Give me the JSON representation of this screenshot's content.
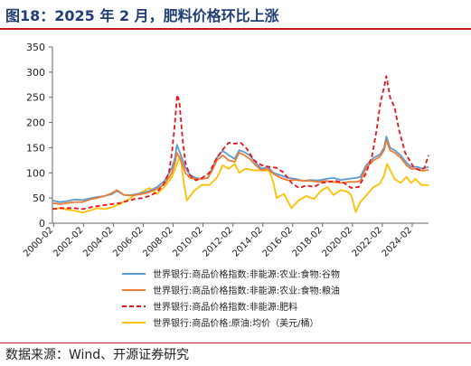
{
  "header": {
    "title": "图18：2025 年 2 月，肥料价格环比上涨"
  },
  "footer": {
    "source": "数据来源：Wind、开源证券研究"
  },
  "colors": {
    "title": "#1f3e74",
    "rule": "#c6161c"
  },
  "chart_data": {
    "type": "line",
    "title": "",
    "xlabel": "",
    "ylabel": "",
    "ylim": [
      0,
      350
    ],
    "yticks": [
      0,
      50,
      100,
      150,
      200,
      250,
      300,
      350
    ],
    "xlim": [
      2000.0,
      2025.17
    ],
    "xtick_labels": [
      "2000-02",
      "2002-02",
      "2004-02",
      "2006-02",
      "2008-02",
      "2010-02",
      "2012-02",
      "2014-02",
      "2016-02",
      "2018-02",
      "2020-02",
      "2022-02",
      "2024-02"
    ],
    "xtick_values": [
      2000.08,
      2002.08,
      2004.08,
      2006.08,
      2008.08,
      2010.08,
      2012.08,
      2014.08,
      2016.08,
      2018.08,
      2020.08,
      2022.08,
      2024.08
    ],
    "grid": false,
    "legend_position": "bottom",
    "series": [
      {
        "name": "世界银行:商品价格指数:非能源:农业:食物:谷物",
        "color": "#5b9bd5",
        "style": "solid",
        "points": [
          [
            2000.0,
            45
          ],
          [
            2000.5,
            42
          ],
          [
            2001.0,
            44
          ],
          [
            2001.5,
            47
          ],
          [
            2002.0,
            46
          ],
          [
            2002.6,
            50
          ],
          [
            2003.0,
            52
          ],
          [
            2003.5,
            54
          ],
          [
            2004.0,
            58
          ],
          [
            2004.3,
            64
          ],
          [
            2004.8,
            56
          ],
          [
            2005.3,
            56
          ],
          [
            2006.0,
            60
          ],
          [
            2006.5,
            64
          ],
          [
            2007.0,
            72
          ],
          [
            2007.5,
            84
          ],
          [
            2008.0,
            110
          ],
          [
            2008.2,
            130
          ],
          [
            2008.33,
            156
          ],
          [
            2008.6,
            135
          ],
          [
            2008.9,
            110
          ],
          [
            2009.2,
            96
          ],
          [
            2009.6,
            90
          ],
          [
            2010.0,
            88
          ],
          [
            2010.4,
            90
          ],
          [
            2010.7,
            110
          ],
          [
            2011.0,
            130
          ],
          [
            2011.4,
            144
          ],
          [
            2011.8,
            135
          ],
          [
            2012.2,
            128
          ],
          [
            2012.5,
            145
          ],
          [
            2012.8,
            142
          ],
          [
            2013.2,
            135
          ],
          [
            2013.6,
            120
          ],
          [
            2014.0,
            108
          ],
          [
            2014.4,
            112
          ],
          [
            2014.8,
            100
          ],
          [
            2015.3,
            95
          ],
          [
            2015.8,
            90
          ],
          [
            2016.3,
            88
          ],
          [
            2016.8,
            84
          ],
          [
            2017.3,
            86
          ],
          [
            2017.8,
            85
          ],
          [
            2018.3,
            88
          ],
          [
            2018.8,
            90
          ],
          [
            2019.3,
            86
          ],
          [
            2019.8,
            88
          ],
          [
            2020.3,
            90
          ],
          [
            2020.6,
            92
          ],
          [
            2021.0,
            115
          ],
          [
            2021.5,
            130
          ],
          [
            2021.9,
            136
          ],
          [
            2022.2,
            150
          ],
          [
            2022.35,
            172
          ],
          [
            2022.6,
            150
          ],
          [
            2022.9,
            145
          ],
          [
            2023.3,
            135
          ],
          [
            2023.7,
            120
          ],
          [
            2024.0,
            112
          ],
          [
            2024.4,
            112
          ],
          [
            2024.8,
            108
          ],
          [
            2025.17,
            112
          ]
        ]
      },
      {
        "name": "世界银行:商品价格指数:非能源:农业:食物:粮油",
        "color": "#ed7d31",
        "style": "solid",
        "points": [
          [
            2000.0,
            40
          ],
          [
            2000.5,
            38
          ],
          [
            2001.0,
            40
          ],
          [
            2001.5,
            42
          ],
          [
            2002.0,
            42
          ],
          [
            2002.6,
            48
          ],
          [
            2003.0,
            50
          ],
          [
            2003.5,
            54
          ],
          [
            2004.0,
            60
          ],
          [
            2004.3,
            66
          ],
          [
            2004.8,
            56
          ],
          [
            2005.3,
            55
          ],
          [
            2006.0,
            58
          ],
          [
            2006.5,
            62
          ],
          [
            2007.0,
            68
          ],
          [
            2007.5,
            78
          ],
          [
            2008.0,
            100
          ],
          [
            2008.2,
            120
          ],
          [
            2008.33,
            140
          ],
          [
            2008.6,
            125
          ],
          [
            2008.9,
            100
          ],
          [
            2009.2,
            90
          ],
          [
            2009.6,
            88
          ],
          [
            2010.0,
            88
          ],
          [
            2010.4,
            90
          ],
          [
            2010.7,
            105
          ],
          [
            2011.0,
            125
          ],
          [
            2011.4,
            135
          ],
          [
            2011.8,
            125
          ],
          [
            2012.2,
            122
          ],
          [
            2012.5,
            140
          ],
          [
            2012.8,
            136
          ],
          [
            2013.2,
            128
          ],
          [
            2013.6,
            115
          ],
          [
            2014.0,
            105
          ],
          [
            2014.4,
            108
          ],
          [
            2014.8,
            98
          ],
          [
            2015.3,
            90
          ],
          [
            2015.8,
            85
          ],
          [
            2016.3,
            86
          ],
          [
            2016.8,
            84
          ],
          [
            2017.3,
            84
          ],
          [
            2017.8,
            82
          ],
          [
            2018.3,
            84
          ],
          [
            2018.8,
            82
          ],
          [
            2019.3,
            80
          ],
          [
            2019.8,
            82
          ],
          [
            2020.3,
            82
          ],
          [
            2020.6,
            84
          ],
          [
            2021.0,
            110
          ],
          [
            2021.5,
            125
          ],
          [
            2021.9,
            132
          ],
          [
            2022.2,
            145
          ],
          [
            2022.35,
            165
          ],
          [
            2022.6,
            145
          ],
          [
            2022.9,
            140
          ],
          [
            2023.3,
            130
          ],
          [
            2023.7,
            115
          ],
          [
            2024.0,
            108
          ],
          [
            2024.4,
            108
          ],
          [
            2024.8,
            104
          ],
          [
            2025.17,
            106
          ]
        ]
      },
      {
        "name": "世界银行:商品价格指数:非能源:肥料",
        "color": "#e8141c",
        "style": "dashed",
        "points": [
          [
            2000.0,
            28
          ],
          [
            2000.5,
            30
          ],
          [
            2001.0,
            30
          ],
          [
            2001.5,
            30
          ],
          [
            2002.0,
            28
          ],
          [
            2002.6,
            32
          ],
          [
            2003.0,
            34
          ],
          [
            2003.5,
            36
          ],
          [
            2004.0,
            38
          ],
          [
            2004.5,
            40
          ],
          [
            2005.0,
            44
          ],
          [
            2005.5,
            48
          ],
          [
            2006.0,
            50
          ],
          [
            2006.5,
            54
          ],
          [
            2007.0,
            62
          ],
          [
            2007.4,
            75
          ],
          [
            2007.8,
            100
          ],
          [
            2008.0,
            140
          ],
          [
            2008.2,
            200
          ],
          [
            2008.35,
            255
          ],
          [
            2008.5,
            240
          ],
          [
            2008.7,
            170
          ],
          [
            2008.9,
            120
          ],
          [
            2009.2,
            95
          ],
          [
            2009.6,
            85
          ],
          [
            2010.0,
            90
          ],
          [
            2010.5,
            100
          ],
          [
            2011.0,
            130
          ],
          [
            2011.5,
            150
          ],
          [
            2011.8,
            160
          ],
          [
            2012.2,
            158
          ],
          [
            2012.6,
            160
          ],
          [
            2013.0,
            148
          ],
          [
            2013.5,
            125
          ],
          [
            2014.0,
            115
          ],
          [
            2014.5,
            112
          ],
          [
            2015.0,
            110
          ],
          [
            2015.5,
            100
          ],
          [
            2016.0,
            80
          ],
          [
            2016.5,
            70
          ],
          [
            2017.0,
            75
          ],
          [
            2017.5,
            72
          ],
          [
            2018.0,
            80
          ],
          [
            2018.5,
            82
          ],
          [
            2019.0,
            84
          ],
          [
            2019.5,
            80
          ],
          [
            2020.0,
            70
          ],
          [
            2020.5,
            72
          ],
          [
            2021.0,
            100
          ],
          [
            2021.4,
            135
          ],
          [
            2021.7,
            185
          ],
          [
            2021.95,
            240
          ],
          [
            2022.2,
            270
          ],
          [
            2022.35,
            292
          ],
          [
            2022.6,
            250
          ],
          [
            2022.9,
            230
          ],
          [
            2023.2,
            185
          ],
          [
            2023.6,
            140
          ],
          [
            2023.9,
            125
          ],
          [
            2024.2,
            110
          ],
          [
            2024.6,
            105
          ],
          [
            2024.9,
            110
          ],
          [
            2025.17,
            135
          ]
        ]
      },
      {
        "name": "世界银行:商品价格:原油:均价（美元/桶）",
        "color": "#ffc000",
        "style": "solid",
        "points": [
          [
            2000.0,
            28
          ],
          [
            2000.5,
            30
          ],
          [
            2001.0,
            27
          ],
          [
            2001.5,
            25
          ],
          [
            2002.0,
            21
          ],
          [
            2002.6,
            26
          ],
          [
            2003.0,
            30
          ],
          [
            2003.5,
            28
          ],
          [
            2004.0,
            32
          ],
          [
            2004.5,
            38
          ],
          [
            2005.0,
            46
          ],
          [
            2005.5,
            55
          ],
          [
            2006.0,
            62
          ],
          [
            2006.5,
            70
          ],
          [
            2007.0,
            58
          ],
          [
            2007.5,
            72
          ],
          [
            2008.0,
            92
          ],
          [
            2008.3,
            115
          ],
          [
            2008.55,
            133
          ],
          [
            2008.8,
            80
          ],
          [
            2009.0,
            45
          ],
          [
            2009.5,
            65
          ],
          [
            2010.0,
            76
          ],
          [
            2010.5,
            76
          ],
          [
            2011.0,
            90
          ],
          [
            2011.4,
            115
          ],
          [
            2011.8,
            108
          ],
          [
            2012.2,
            118
          ],
          [
            2012.5,
            100
          ],
          [
            2012.9,
            108
          ],
          [
            2013.5,
            105
          ],
          [
            2014.0,
            105
          ],
          [
            2014.5,
            104
          ],
          [
            2014.8,
            80
          ],
          [
            2015.0,
            50
          ],
          [
            2015.5,
            58
          ],
          [
            2016.0,
            30
          ],
          [
            2016.5,
            46
          ],
          [
            2017.0,
            54
          ],
          [
            2017.5,
            48
          ],
          [
            2018.0,
            65
          ],
          [
            2018.4,
            72
          ],
          [
            2018.8,
            56
          ],
          [
            2019.3,
            66
          ],
          [
            2019.8,
            62
          ],
          [
            2020.0,
            55
          ],
          [
            2020.3,
            22
          ],
          [
            2020.6,
            42
          ],
          [
            2021.0,
            55
          ],
          [
            2021.5,
            72
          ],
          [
            2021.9,
            78
          ],
          [
            2022.2,
            95
          ],
          [
            2022.4,
            118
          ],
          [
            2022.7,
            100
          ],
          [
            2022.9,
            88
          ],
          [
            2023.3,
            80
          ],
          [
            2023.7,
            92
          ],
          [
            2024.0,
            80
          ],
          [
            2024.3,
            88
          ],
          [
            2024.7,
            76
          ],
          [
            2025.0,
            76
          ],
          [
            2025.17,
            75
          ]
        ]
      }
    ]
  }
}
